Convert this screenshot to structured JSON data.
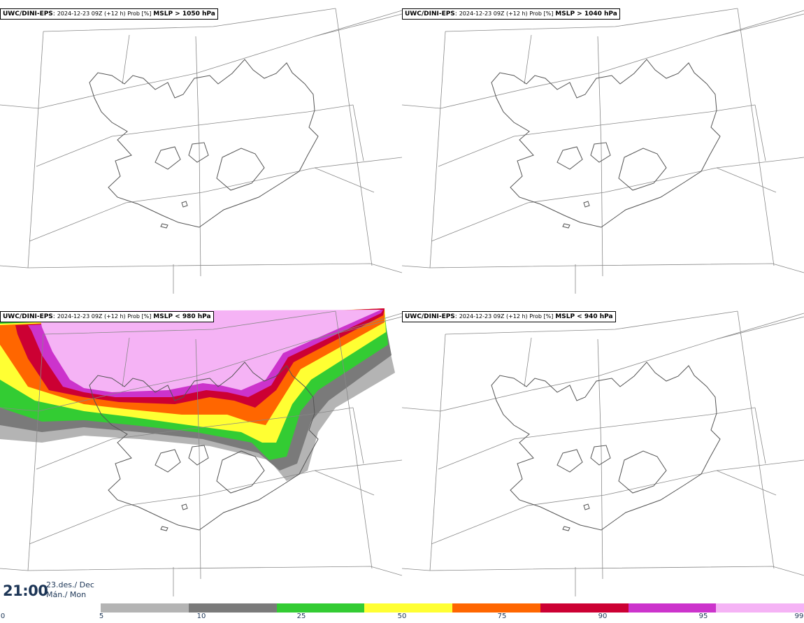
{
  "panels": [
    {
      "model": "UWC/DINI-EPS",
      "meta": "2024-12-23 09Z (+12 h) Prob [%]",
      "threshold": "MSLP > 1050 hPa",
      "probability_field": false
    },
    {
      "model": "UWC/DINI-EPS",
      "meta": "2024-12-23 09Z (+12 h) Prob [%]",
      "threshold": "MSLP > 1040 hPa",
      "probability_field": false
    },
    {
      "model": "UWC/DINI-EPS",
      "meta": "2024-12-23 09Z (+12 h) Prob [%]",
      "threshold": "MSLP < 980 hPa",
      "probability_field": true
    },
    {
      "model": "UWC/DINI-EPS",
      "meta": "2024-12-23 09Z (+12 h) Prob [%]",
      "threshold": "MSLP < 940 hPa",
      "probability_field": false
    }
  ],
  "valid_time": {
    "time": "21:00",
    "date_line1": "23.des./ Dec",
    "date_line2": "Mán./ Mon"
  },
  "colorbar": {
    "ticks": [
      "0",
      "5",
      "10",
      "25",
      "50",
      "75",
      "90",
      "95",
      "99"
    ],
    "colors": [
      "#b4b4b4",
      "#7a7a7a",
      "#33cc33",
      "#ffff33",
      "#ff6600",
      "#cc0033",
      "#cc33cc",
      "#f5b3f5"
    ]
  }
}
